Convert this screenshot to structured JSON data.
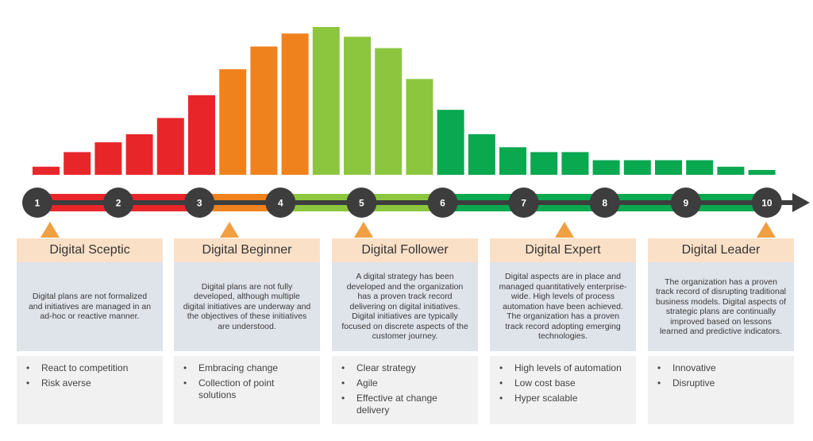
{
  "palette": {
    "red": "#e8262a",
    "orange": "#f0821e",
    "lightgreen": "#8cc63f",
    "green": "#0aa84f",
    "node": "#3d3d3d",
    "header_bg": "#fbe0c8",
    "desc_bg": "#dfe3ea",
    "list_bg": "#f1f1f1",
    "triangle": "#f0a042"
  },
  "histogram": [
    {
      "value": 5,
      "color": "red"
    },
    {
      "value": 14,
      "color": "red"
    },
    {
      "value": 20,
      "color": "red"
    },
    {
      "value": 25,
      "color": "red"
    },
    {
      "value": 35,
      "color": "red"
    },
    {
      "value": 49,
      "color": "red"
    },
    {
      "value": 65,
      "color": "orange"
    },
    {
      "value": 79,
      "color": "orange"
    },
    {
      "value": 87,
      "color": "orange"
    },
    {
      "value": 91,
      "color": "lightgreen"
    },
    {
      "value": 85,
      "color": "lightgreen"
    },
    {
      "value": 78,
      "color": "lightgreen"
    },
    {
      "value": 59,
      "color": "lightgreen"
    },
    {
      "value": 40,
      "color": "green"
    },
    {
      "value": 25,
      "color": "green"
    },
    {
      "value": 17,
      "color": "green"
    },
    {
      "value": 14,
      "color": "green"
    },
    {
      "value": 14,
      "color": "green"
    },
    {
      "value": 9,
      "color": "green"
    },
    {
      "value": 9,
      "color": "green"
    },
    {
      "value": 9,
      "color": "green"
    },
    {
      "value": 9,
      "color": "green"
    },
    {
      "value": 5,
      "color": "green"
    },
    {
      "value": 3,
      "color": "green"
    }
  ],
  "timeline": {
    "steps": [
      "1",
      "2",
      "3",
      "4",
      "5",
      "6",
      "7",
      "8",
      "9",
      "10"
    ],
    "segments": [
      {
        "color": "red",
        "from": 1,
        "to": 3
      },
      {
        "color": "orange",
        "from": 3,
        "to": 4
      },
      {
        "color": "lightgreen",
        "from": 4,
        "to": 6
      },
      {
        "color": "green",
        "from": 6,
        "to": 10
      }
    ]
  },
  "stages": [
    {
      "title": "Digital Sceptic",
      "description": "Digital plans are not formalized and initiatives are managed in an ad-hoc or reactive manner.",
      "items": [
        "React to competition",
        "Risk averse"
      ]
    },
    {
      "title": "Digital Beginner",
      "description": "Digital plans are not fully developed, although multiple digital initiatives are underway and the objectives of these initiatives are understood.",
      "items": [
        "Embracing change",
        "Collection of point solutions"
      ]
    },
    {
      "title": "Digital Follower",
      "description": "A digital strategy has been developed and the organization has a proven track record delivering on digital initiatives. Digital initiatives are typically focused on discrete aspects of the customer journey.",
      "items": [
        "Clear strategy",
        "Agile",
        "Effective at change delivery"
      ]
    },
    {
      "title": "Digital Expert",
      "description": "Digital aspects are in place and managed quantitatively enterprise-wide. High levels of process automation have been achieved. The organization has a proven track record adopting emerging technologies.",
      "items": [
        "High levels of automation",
        "Low cost base",
        "Hyper scalable"
      ]
    },
    {
      "title": "Digital Leader",
      "description": "The organization has a proven track record of disrupting traditional business models. Digital aspects of strategic plans are continually improved based on lessons learned and predictive indicators.",
      "items": [
        "Innovative",
        "Disruptive"
      ]
    }
  ]
}
